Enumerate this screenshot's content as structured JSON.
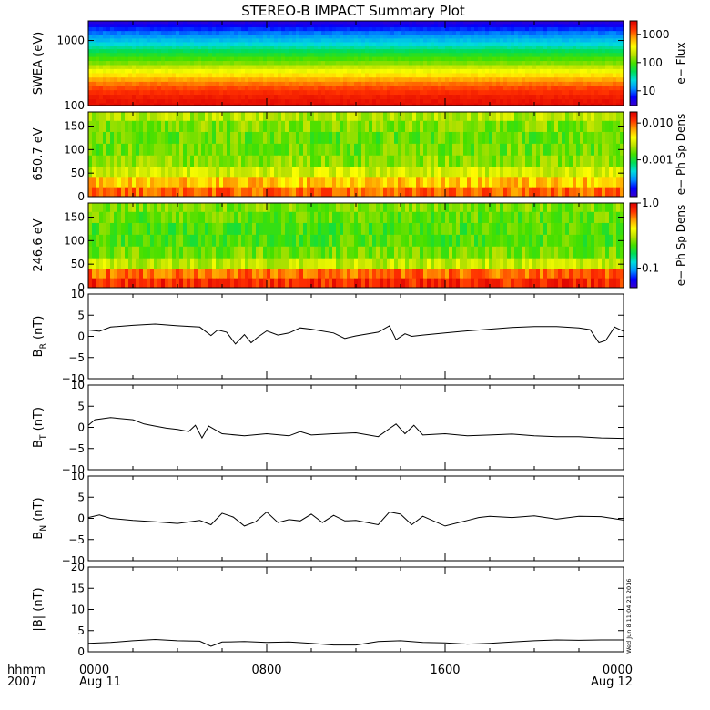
{
  "title": "STEREO-B IMPACT Summary Plot",
  "x_axis": {
    "label_line1": "hhmm",
    "label_line2": "2007",
    "range_hours": [
      0,
      24
    ],
    "ticks": [
      {
        "hour": 0,
        "time": "0000",
        "date": "Aug 11"
      },
      {
        "hour": 8,
        "time": "0800",
        "date": ""
      },
      {
        "hour": 16,
        "time": "1600",
        "date": ""
      },
      {
        "hour": 24,
        "time": "0000",
        "date": "Aug 12"
      }
    ]
  },
  "stamp": "Wed Jun  8 11:04:21 2016",
  "colors": {
    "colormap": [
      "#3a00cc",
      "#0000ff",
      "#0090ff",
      "#00dcdc",
      "#00dd55",
      "#44e000",
      "#b8e000",
      "#ffff00",
      "#ffa000",
      "#ff3000",
      "#dd0000"
    ],
    "line": "#000000"
  },
  "chart_data": [
    {
      "type": "heatmap",
      "id": "swea",
      "ylabel": "SWEA (eV)",
      "yscale": "log",
      "ylim": [
        100,
        2000
      ],
      "yticks": [
        {
          "value": 100,
          "label": "100"
        },
        {
          "value": 1000,
          "label": "1000"
        }
      ],
      "colorbar": {
        "label": "e− Flux",
        "scale": "log",
        "range": [
          3,
          3000
        ],
        "ticks": [
          {
            "value": 10,
            "label": "10"
          },
          {
            "value": 100,
            "label": "100"
          },
          {
            "value": 1000,
            "label": "1000"
          }
        ]
      },
      "rows": [
        {
          "energy": 1900,
          "level": 0.04
        },
        {
          "energy": 1700,
          "level": 0.08
        },
        {
          "energy": 1500,
          "level": 0.13
        },
        {
          "energy": 1300,
          "level": 0.18
        },
        {
          "energy": 1150,
          "level": 0.22
        },
        {
          "energy": 1000,
          "level": 0.26
        },
        {
          "energy": 880,
          "level": 0.3
        },
        {
          "energy": 780,
          "level": 0.35
        },
        {
          "energy": 690,
          "level": 0.4
        },
        {
          "energy": 600,
          "level": 0.45
        },
        {
          "energy": 520,
          "level": 0.5
        },
        {
          "energy": 450,
          "level": 0.55
        },
        {
          "energy": 390,
          "level": 0.62
        },
        {
          "energy": 340,
          "level": 0.68
        },
        {
          "energy": 290,
          "level": 0.73
        },
        {
          "energy": 250,
          "level": 0.79
        },
        {
          "energy": 215,
          "level": 0.84
        },
        {
          "energy": 185,
          "level": 0.88
        },
        {
          "energy": 160,
          "level": 0.91
        },
        {
          "energy": 135,
          "level": 0.94
        },
        {
          "energy": 115,
          "level": 0.96
        },
        {
          "energy": 102,
          "level": 0.97
        }
      ]
    },
    {
      "type": "heatmap",
      "id": "pad650",
      "ylabel": "650.7 eV",
      "yscale": "linear",
      "ylim": [
        0,
        180
      ],
      "yticks": [
        {
          "value": 0,
          "label": "0"
        },
        {
          "value": 50,
          "label": "50"
        },
        {
          "value": 100,
          "label": "100"
        },
        {
          "value": 150,
          "label": "150"
        }
      ],
      "colorbar": {
        "label": "e− Ph Sp Dens",
        "scale": "log",
        "range": [
          0.0001,
          0.02
        ],
        "ticks": [
          {
            "value": 0.001,
            "label": "0.001"
          },
          {
            "value": 0.01,
            "label": "0.010"
          }
        ]
      },
      "rows": [
        {
          "pitch_angle": 172,
          "level": 0.6
        },
        {
          "pitch_angle": 150,
          "level": 0.55
        },
        {
          "pitch_angle": 125,
          "level": 0.52
        },
        {
          "pitch_angle": 100,
          "level": 0.53
        },
        {
          "pitch_angle": 75,
          "level": 0.56
        },
        {
          "pitch_angle": 50,
          "level": 0.64
        },
        {
          "pitch_angle": 30,
          "level": 0.76
        },
        {
          "pitch_angle": 10,
          "level": 0.85
        }
      ]
    },
    {
      "type": "heatmap",
      "id": "pad246",
      "ylabel": "246.6 eV",
      "yscale": "linear",
      "ylim": [
        0,
        180
      ],
      "yticks": [
        {
          "value": 0,
          "label": "0"
        },
        {
          "value": 50,
          "label": "50"
        },
        {
          "value": 100,
          "label": "100"
        },
        {
          "value": 150,
          "label": "150"
        }
      ],
      "colorbar": {
        "label": "e− Ph Sp Dens",
        "scale": "log",
        "range": [
          0.05,
          1.0
        ],
        "ticks": [
          {
            "value": 0.1,
            "label": "0.1"
          },
          {
            "value": 1.0,
            "label": "1.0"
          }
        ]
      },
      "rows": [
        {
          "pitch_angle": 172,
          "level": 0.55
        },
        {
          "pitch_angle": 150,
          "level": 0.52
        },
        {
          "pitch_angle": 125,
          "level": 0.5
        },
        {
          "pitch_angle": 100,
          "level": 0.5
        },
        {
          "pitch_angle": 75,
          "level": 0.54
        },
        {
          "pitch_angle": 50,
          "level": 0.62
        },
        {
          "pitch_angle": 30,
          "level": 0.85
        },
        {
          "pitch_angle": 10,
          "level": 0.92
        }
      ]
    },
    {
      "type": "line",
      "id": "br",
      "ylabel_main": "B",
      "ylabel_sub": "R",
      "ylabel_unit": " (nT)",
      "ylim": [
        -10,
        10
      ],
      "yticks": [
        {
          "value": -10,
          "label": "−10"
        },
        {
          "value": -5,
          "label": "−5"
        },
        {
          "value": 0,
          "label": "0"
        },
        {
          "value": 5,
          "label": "5"
        },
        {
          "value": 10,
          "label": "10"
        }
      ],
      "x": [
        0,
        0.5,
        1,
        2,
        3,
        4,
        5,
        5.5,
        5.8,
        6.2,
        6.6,
        7.0,
        7.3,
        7.6,
        8,
        8.5,
        9,
        9.5,
        10,
        11,
        11.5,
        12,
        13,
        13.5,
        13.8,
        14.2,
        14.5,
        15,
        16,
        17,
        18,
        19,
        20,
        21,
        22,
        22.5,
        22.9,
        23.2,
        23.6,
        24
      ],
      "y": [
        1.5,
        1.2,
        2.2,
        2.6,
        2.9,
        2.5,
        2.2,
        0.2,
        1.5,
        1.0,
        -1.8,
        0.4,
        -1.5,
        -0.2,
        1.3,
        0.3,
        0.8,
        2.0,
        1.7,
        0.8,
        -0.5,
        0.1,
        1.0,
        2.5,
        -0.8,
        0.6,
        0.0,
        0.3,
        0.8,
        1.3,
        1.7,
        2.1,
        2.3,
        2.3,
        2.0,
        1.6,
        -1.5,
        -1.0,
        2.2,
        1.2
      ]
    },
    {
      "type": "line",
      "id": "bt",
      "ylabel_main": "B",
      "ylabel_sub": "T",
      "ylabel_unit": " (nT)",
      "ylim": [
        -10,
        10
      ],
      "yticks": [
        {
          "value": -10,
          "label": "−10"
        },
        {
          "value": -5,
          "label": "−5"
        },
        {
          "value": 0,
          "label": "0"
        },
        {
          "value": 5,
          "label": "5"
        },
        {
          "value": 10,
          "label": "10"
        }
      ],
      "x": [
        0,
        0.3,
        1,
        2,
        2.5,
        3,
        3.5,
        4,
        4.5,
        4.8,
        5.1,
        5.4,
        6,
        7,
        8,
        9,
        9.5,
        10,
        11,
        12,
        13,
        13.5,
        13.8,
        14.2,
        14.6,
        15,
        16,
        17,
        18,
        19,
        20,
        21,
        22,
        23,
        24
      ],
      "y": [
        0.5,
        1.8,
        2.3,
        1.8,
        0.8,
        0.3,
        -0.2,
        -0.5,
        -1.0,
        0.5,
        -2.5,
        0.3,
        -1.5,
        -2.0,
        -1.5,
        -2.0,
        -1.0,
        -1.8,
        -1.5,
        -1.3,
        -2.2,
        -0.3,
        0.8,
        -1.5,
        0.5,
        -1.8,
        -1.5,
        -2.0,
        -1.8,
        -1.6,
        -2.0,
        -2.2,
        -2.2,
        -2.5,
        -2.6
      ]
    },
    {
      "type": "line",
      "id": "bn",
      "ylabel_main": "B",
      "ylabel_sub": "N",
      "ylabel_unit": " (nT)",
      "ylim": [
        -10,
        10
      ],
      "yticks": [
        {
          "value": -10,
          "label": "−10"
        },
        {
          "value": -5,
          "label": "−5"
        },
        {
          "value": 0,
          "label": "0"
        },
        {
          "value": 5,
          "label": "5"
        },
        {
          "value": 10,
          "label": "10"
        }
      ],
      "x": [
        0,
        0.5,
        1,
        2,
        3,
        4,
        5,
        5.5,
        6,
        6.5,
        7,
        7.5,
        8,
        8.5,
        9,
        9.5,
        10,
        10.5,
        11,
        11.5,
        12,
        13,
        13.5,
        14,
        14.5,
        15,
        16,
        17,
        17.5,
        18,
        19,
        20,
        21,
        22,
        23,
        24
      ],
      "y": [
        0.2,
        0.8,
        0.0,
        -0.5,
        -0.8,
        -1.2,
        -0.5,
        -1.5,
        1.2,
        0.3,
        -1.8,
        -0.8,
        1.5,
        -1.0,
        -0.3,
        -0.6,
        1.0,
        -1.0,
        0.7,
        -0.6,
        -0.5,
        -1.5,
        1.5,
        1.0,
        -1.5,
        0.5,
        -1.8,
        -0.5,
        0.2,
        0.5,
        0.2,
        0.6,
        -0.2,
        0.5,
        0.4,
        -0.4
      ]
    },
    {
      "type": "line",
      "id": "bmag",
      "ylabel_main": "|B| (nT)",
      "ylim": [
        0,
        20
      ],
      "yticks": [
        {
          "value": 0,
          "label": "0"
        },
        {
          "value": 5,
          "label": "5"
        },
        {
          "value": 10,
          "label": "10"
        },
        {
          "value": 15,
          "label": "15"
        },
        {
          "value": 20,
          "label": "20"
        }
      ],
      "x": [
        0,
        1,
        2,
        3,
        4,
        5,
        5.5,
        6,
        7,
        8,
        9,
        10,
        11,
        12,
        13,
        14,
        15,
        16,
        17,
        18,
        19,
        20,
        21,
        22,
        23,
        24
      ],
      "y": [
        2.0,
        2.2,
        2.6,
        2.9,
        2.6,
        2.5,
        1.3,
        2.3,
        2.4,
        2.2,
        2.3,
        2.0,
        1.6,
        1.6,
        2.4,
        2.6,
        2.2,
        2.1,
        1.8,
        2.0,
        2.3,
        2.6,
        2.8,
        2.7,
        2.8,
        2.8
      ]
    }
  ]
}
